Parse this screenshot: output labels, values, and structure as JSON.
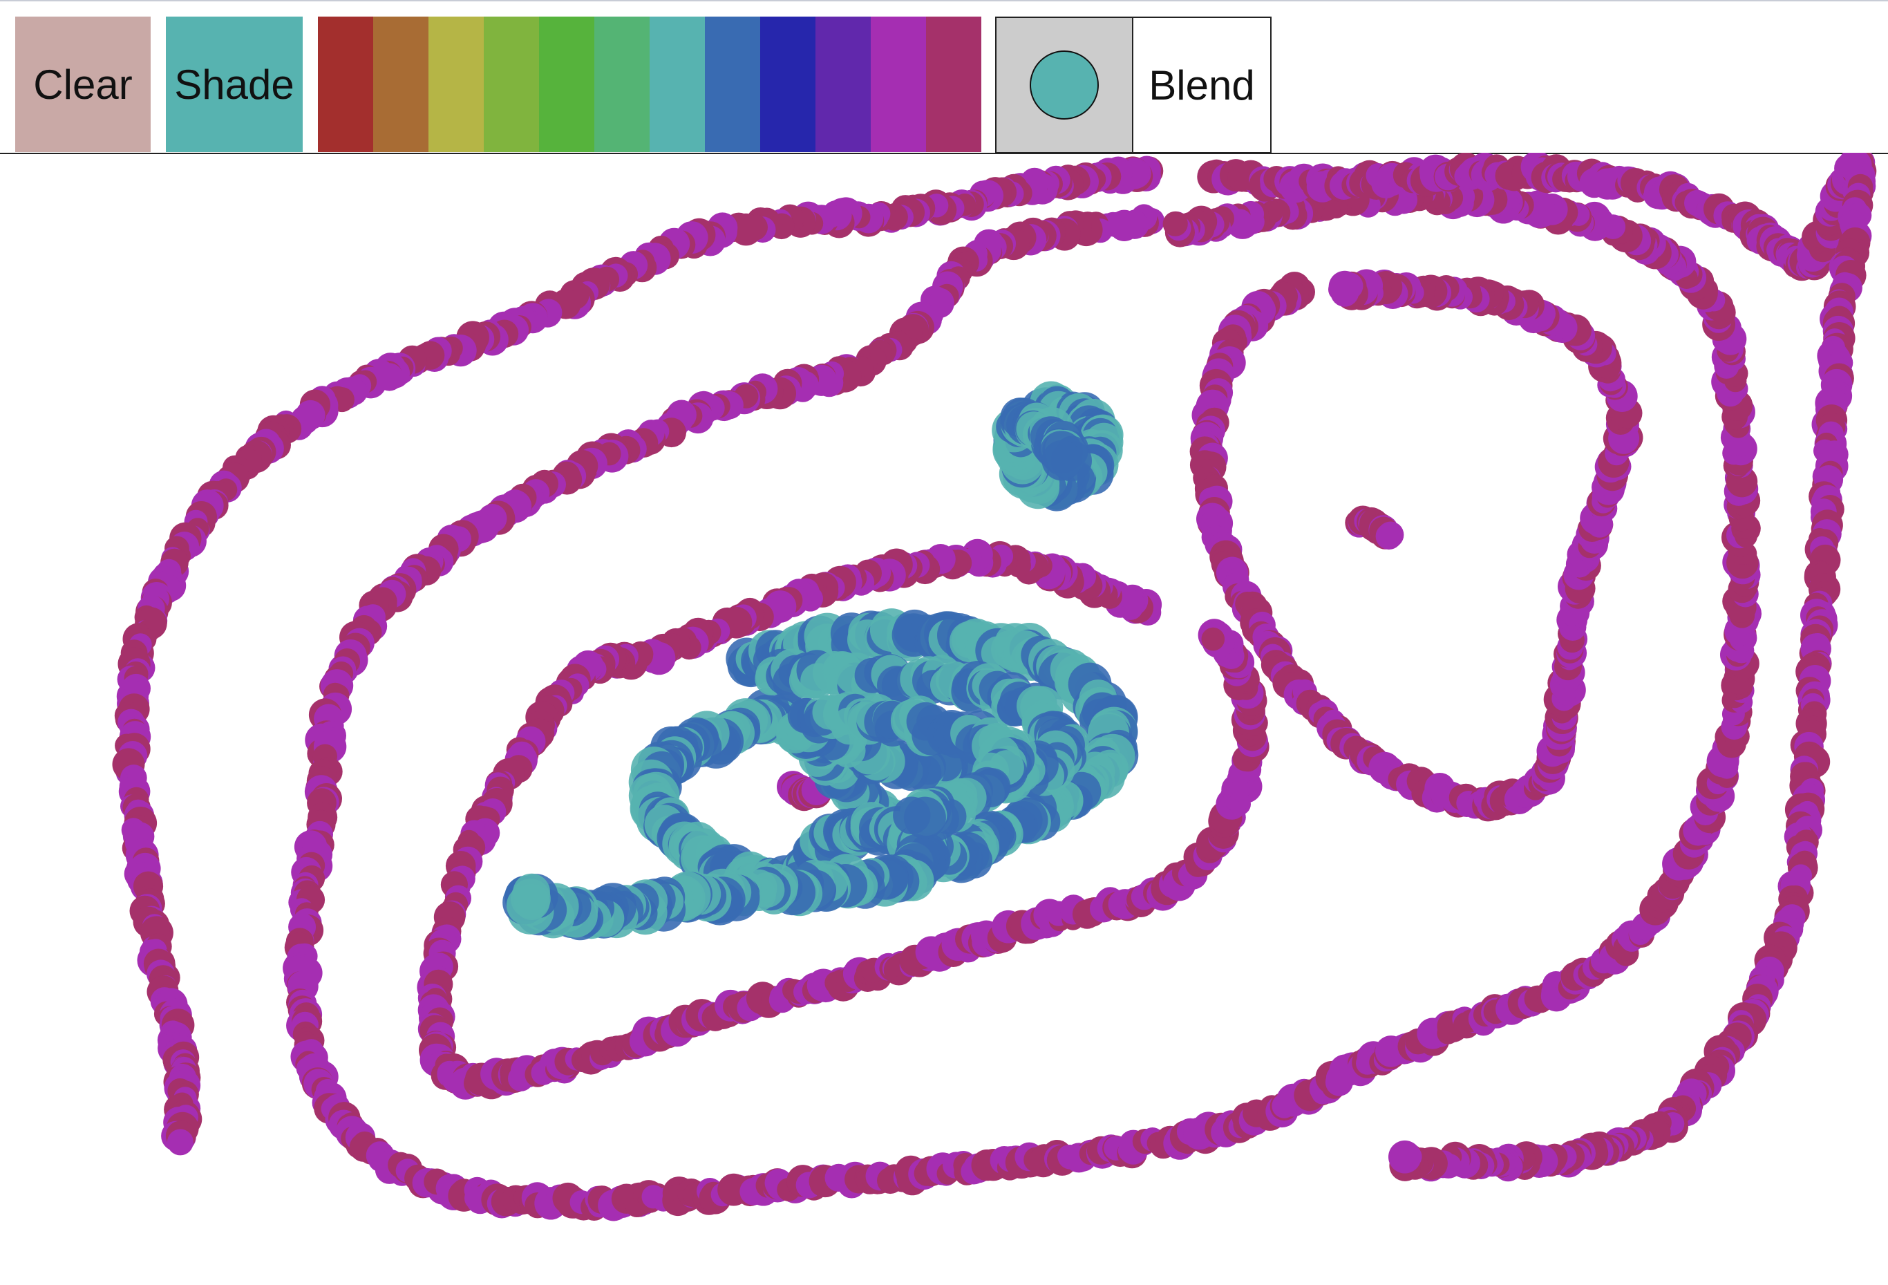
{
  "toolbar": {
    "clear_label": "Clear",
    "shade_label": "Shade",
    "blend_label": "Blend",
    "clear_color": "#c9a9a6",
    "shade_color": "#57b3b0",
    "brush_color": "#57b3b0",
    "palette": [
      {
        "name": "red",
        "color": "#a32f2d"
      },
      {
        "name": "orange-brown",
        "color": "#a86c34"
      },
      {
        "name": "olive",
        "color": "#b5b546"
      },
      {
        "name": "yellow-green",
        "color": "#80b43e"
      },
      {
        "name": "green",
        "color": "#56b33c"
      },
      {
        "name": "sea-green",
        "color": "#54b474"
      },
      {
        "name": "teal",
        "color": "#57b3b0"
      },
      {
        "name": "steel-blue",
        "color": "#396bb2"
      },
      {
        "name": "blue",
        "color": "#2626ac"
      },
      {
        "name": "purple",
        "color": "#6128ac"
      },
      {
        "name": "magenta",
        "color": "#a52eb2"
      },
      {
        "name": "raspberry",
        "color": "#a5316a"
      }
    ]
  },
  "canvas": {
    "stroke_colors": [
      "#a52eb2",
      "#a5316a"
    ],
    "shade_colors": [
      "#57b3b0",
      "#396bb2"
    ]
  }
}
